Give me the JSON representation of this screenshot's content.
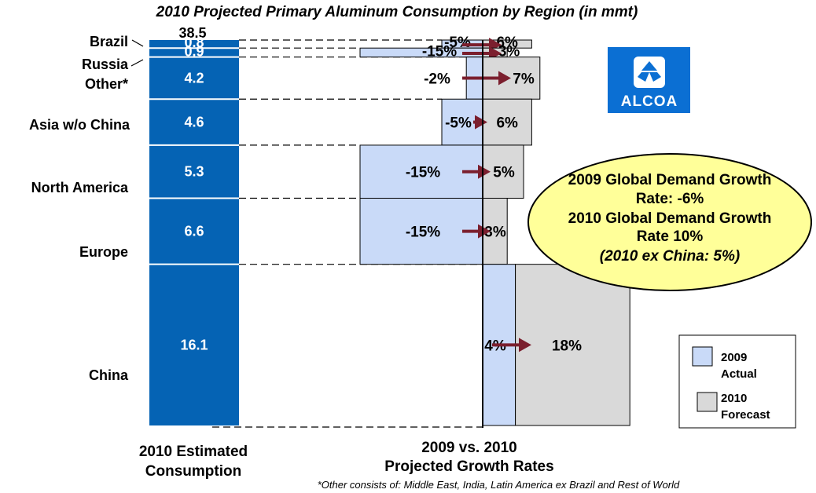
{
  "chart_data": {
    "type": "bar",
    "title": "2010 Projected Primary Aluminum Consumption by Region (in mmt)",
    "total_label": "38.5",
    "regions": [
      {
        "name": "Brazil",
        "consumption_2010": 0.8,
        "consumption_label": "0.8",
        "growth_2009": -5,
        "growth_2010": 6,
        "growth_2009_label": "-5%",
        "growth_2010_label": "6%"
      },
      {
        "name": "Russia",
        "consumption_2010": 0.9,
        "consumption_label": "0.9",
        "growth_2009": -15,
        "growth_2010": 3,
        "growth_2009_label": "-15%",
        "growth_2010_label": "3%"
      },
      {
        "name": "Other*",
        "consumption_2010": 4.2,
        "consumption_label": "4.2",
        "growth_2009": -2,
        "growth_2010": 7,
        "growth_2009_label": "-2%",
        "growth_2010_label": "7%"
      },
      {
        "name": "Asia w/o China",
        "consumption_2010": 4.6,
        "consumption_label": "4.6",
        "growth_2009": -5,
        "growth_2010": 6,
        "growth_2009_label": "-5%",
        "growth_2010_label": "6%"
      },
      {
        "name": "North America",
        "consumption_2010": 5.3,
        "consumption_label": "5.3",
        "growth_2009": -15,
        "growth_2010": 5,
        "growth_2009_label": "-15%",
        "growth_2010_label": "5%"
      },
      {
        "name": "Europe",
        "consumption_2010": 6.6,
        "consumption_label": "6.6",
        "growth_2009": -15,
        "growth_2010": 3,
        "growth_2009_label": "-15%",
        "growth_2010_label": "3%"
      },
      {
        "name": "China",
        "consumption_2010": 16.1,
        "consumption_label": "16.1",
        "growth_2009": 4,
        "growth_2010": 18,
        "growth_2009_label": "4%",
        "growth_2010_label": "18%"
      }
    ],
    "xlabel_left": [
      "2010 Estimated",
      "Consumption"
    ],
    "xlabel_right": [
      "2009 vs. 2010",
      "Projected Growth Rates"
    ],
    "legend": [
      {
        "label": [
          "2009",
          "Actual"
        ],
        "color": "#c9daf8"
      },
      {
        "label": [
          "2010",
          "Forecast"
        ],
        "color": "#d9d9d9"
      }
    ],
    "legend_position": "bottom-right",
    "callout": {
      "lines": [
        "2009 Global Demand Growth",
        "Rate:  -6%",
        "2010 Global Demand Growth",
        "Rate 10%"
      ],
      "italic_line": "(2010 ex China:  5%)"
    },
    "footnote": "*Other consists of: Middle East, India, Latin America ex Brazil and Rest of World"
  },
  "logo": {
    "text": "ALCOA"
  },
  "colors": {
    "bar": "#0563b4",
    "actual_2009": "#c9daf8",
    "forecast_2010": "#d9d9d9",
    "arrow": "#7b1f2e",
    "callout_fill": "#ffff99",
    "logo_bg": "#0b6fd3"
  }
}
